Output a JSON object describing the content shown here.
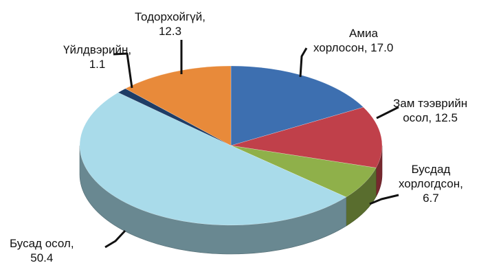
{
  "chart_data": {
    "type": "pie",
    "style": "3d",
    "title": "",
    "slices": [
      {
        "name": "Амиа хорлосон",
        "label_line1": "Амиа",
        "label_line2": "хорлосон, 17.0",
        "value": 17.0,
        "color": "#3d6fb0"
      },
      {
        "name": "Зам тээврийн осол",
        "label_line1": "Зам тээврийн",
        "label_line2": "осол, 12.5",
        "value": 12.5,
        "color": "#c0404a"
      },
      {
        "name": "Бусдад хорлогдсон",
        "label_line1": "Бусдад",
        "label_line2": "хорлогдсон,",
        "label_line3": "6.7",
        "value": 6.7,
        "color": "#8fb04a"
      },
      {
        "name": "Бусад осол",
        "label_line1": "Бусад осол,",
        "label_line2": "50.4",
        "value": 50.4,
        "color": "#a9dbea"
      },
      {
        "name": "Үйлдвэрийн",
        "label_line1": "Үйлдвэрийн,",
        "label_line2": "1.1",
        "value": 1.1,
        "color": "#1f3d66"
      },
      {
        "name": "Тодорхойгүй",
        "label_line1": "Тодорхойгүй,",
        "label_line2": "12.3",
        "value": 12.3,
        "color": "#e88a3a"
      }
    ]
  }
}
